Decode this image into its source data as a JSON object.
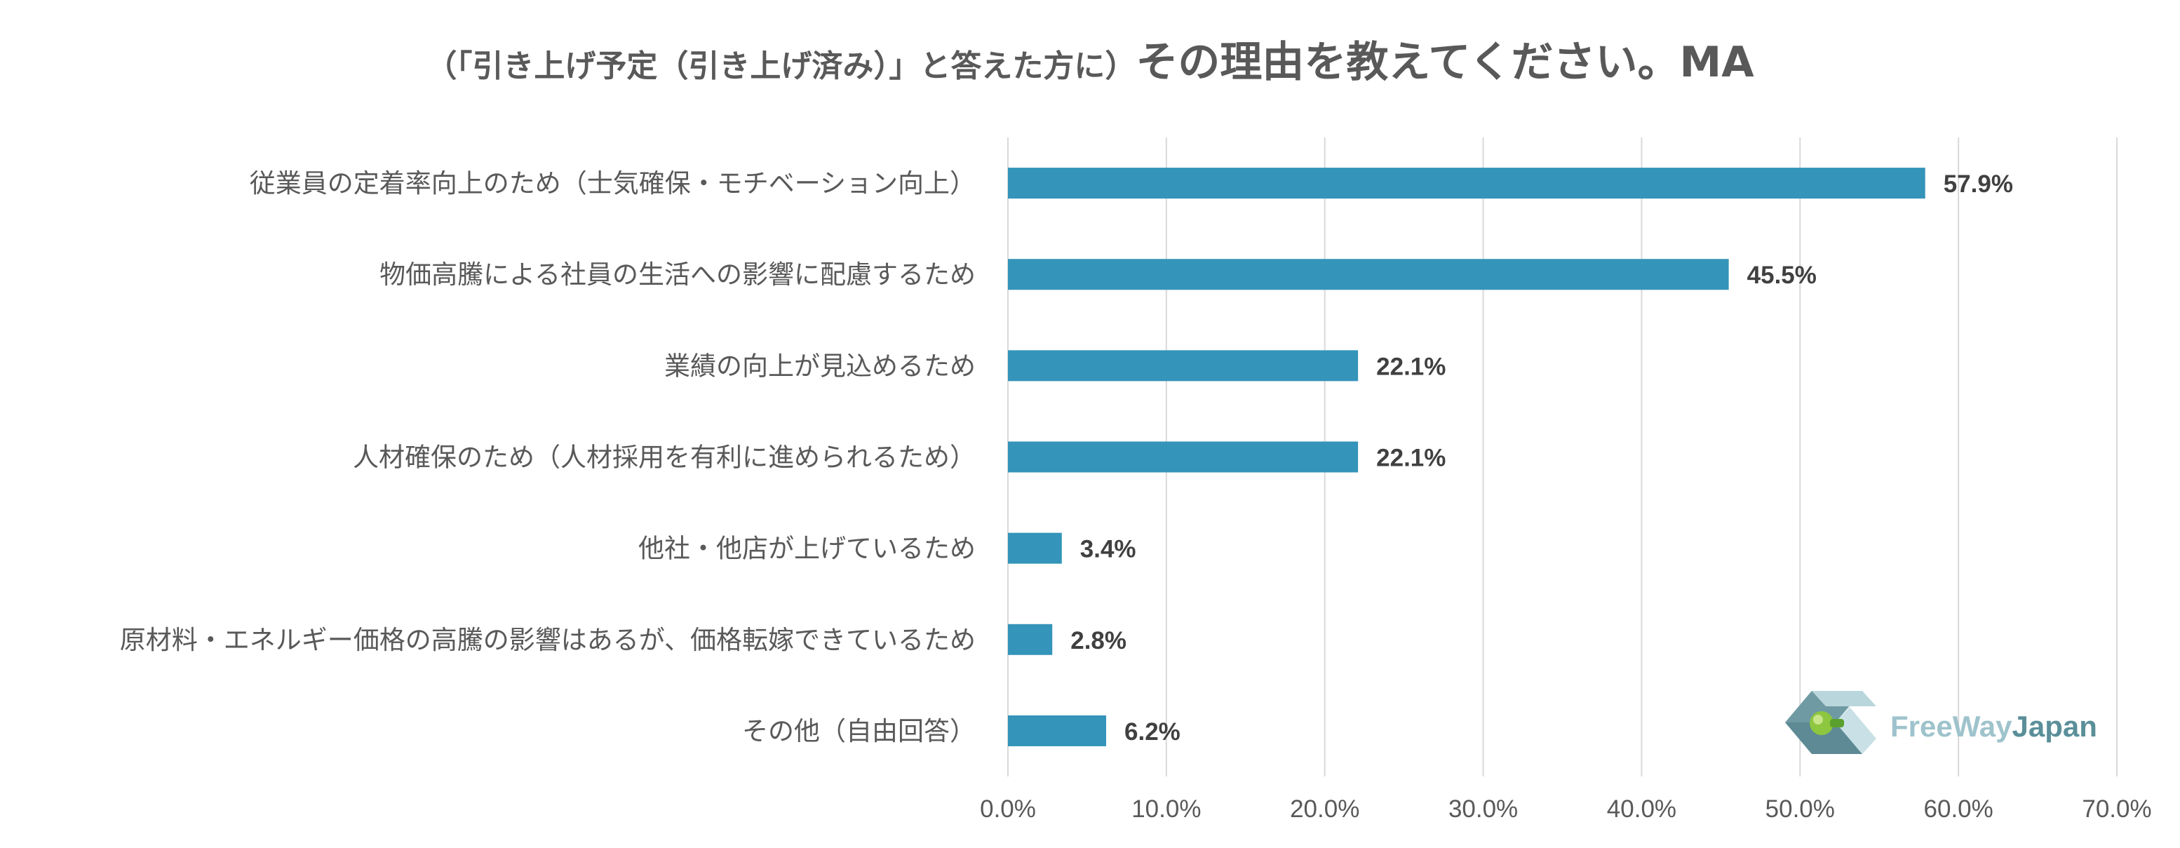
{
  "chart_data": {
    "type": "bar",
    "orientation": "horizontal",
    "title_prefix": "（「引き上げ予定（引き上げ済み）」と答えた方に）",
    "title_main": "その理由を教えてください。MA",
    "categories": [
      "従業員の定着率向上のため（士気確保・モチベーション向上）",
      "物価高騰による社員の生活への影響に配慮するため",
      "業績の向上が見込めるため",
      "人材確保のため（人材採用を有利に進められるため）",
      "他社・他店が上げているため",
      "原材料・エネルギー価格の高騰の影響はあるが、価格転嫁できているため",
      "その他（自由回答）"
    ],
    "values": [
      57.9,
      45.5,
      22.1,
      22.1,
      3.4,
      2.8,
      6.2
    ],
    "value_labels": [
      "57.9%",
      "45.5%",
      "22.1%",
      "22.1%",
      "3.4%",
      "2.8%",
      "6.2%"
    ],
    "xlim": [
      0,
      70
    ],
    "ticks": [
      0,
      10,
      20,
      30,
      40,
      50,
      60,
      70
    ],
    "tick_labels": [
      "0.0%",
      "10.0%",
      "20.0%",
      "30.0%",
      "40.0%",
      "50.0%",
      "60.0%",
      "70.0%"
    ],
    "grid": "vertical",
    "bar_color": "#3494ba"
  },
  "logo": {
    "text_free_way": "FreeWay",
    "text_japan": "Japan"
  }
}
